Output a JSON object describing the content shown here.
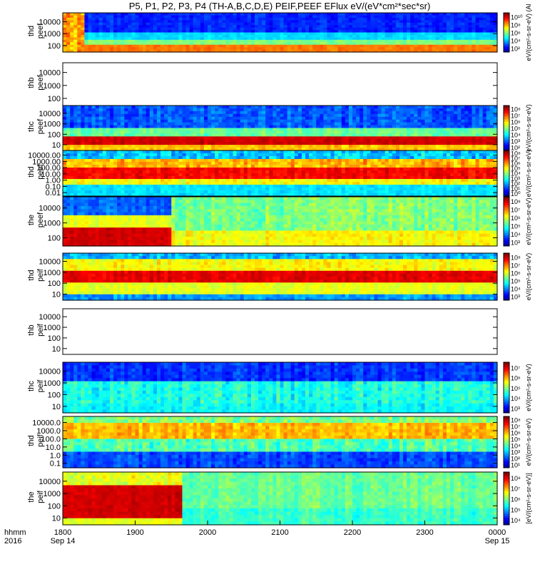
{
  "chart_data": {
    "type": "heatmap",
    "title": "P5, P1, P2, P3, P4 (TH-A,B,C,D,E) PEIF,PEEF EFlux eV/(eV*cm²*sec*sr)",
    "x_axis": {
      "label_line1": "hhmm",
      "label_line2": "2016",
      "ticks": [
        {
          "hhmm": "1800",
          "date": "Sep 14"
        },
        {
          "hhmm": "1900",
          "date": ""
        },
        {
          "hhmm": "2000",
          "date": ""
        },
        {
          "hhmm": "2100",
          "date": ""
        },
        {
          "hhmm": "2200",
          "date": ""
        },
        {
          "hhmm": "2300",
          "date": ""
        },
        {
          "hhmm": "0000",
          "date": "Sep 15"
        }
      ],
      "range": [
        "2016-09-14 18:00",
        "2016-09-15 00:00"
      ]
    },
    "panels": [
      {
        "probe": "thd",
        "product": "peef",
        "yticks": [
          "10000",
          "1000",
          "100"
        ],
        "ylog": true,
        "colorbar": {
          "ticks": [
            "10¹⁰",
            "10⁸",
            "10⁶",
            "10⁴",
            "10²"
          ],
          "label": "eV/(cm²-s-sr-eV) (Al"
        },
        "pattern": "dense-dark-blue",
        "empty": false
      },
      {
        "probe": "thb",
        "product": "peef",
        "yticks": [
          "10000",
          "1000",
          "100"
        ],
        "ylog": true,
        "colorbar": null,
        "pattern": "none",
        "empty": true
      },
      {
        "probe": "thc",
        "product": "peef",
        "yticks": [
          "10000",
          "1000",
          "100",
          "10"
        ],
        "ylog": true,
        "colorbar": {
          "ticks": [
            "10⁸",
            "10⁷",
            "10⁶",
            "10⁵",
            "10⁴",
            "10³",
            "10²"
          ],
          "label": "eV/(cm²-s-sr-eV)"
        },
        "pattern": "red-band-low",
        "empty": false
      },
      {
        "probe": "thd",
        "product": "peef",
        "yticks": [
          "10000.00",
          "1000.00",
          "100.00",
          "10.00",
          "1.00",
          "0.10",
          "0.01"
        ],
        "ylog": true,
        "colorbar": {
          "ticks": [
            "10⁸",
            "10⁷",
            "10⁶",
            "10⁵",
            "10⁴",
            "10³",
            "10²",
            "10¹",
            "10⁰"
          ],
          "label": "eV/(cm²-s-sr-eV)"
        },
        "pattern": "red-band-mid",
        "empty": false
      },
      {
        "probe": "the",
        "product": "peef",
        "yticks": [
          "10000",
          "1000",
          "100"
        ],
        "ylog": true,
        "colorbar": {
          "ticks": [
            "10⁸",
            "10⁷",
            "10⁶",
            "10⁵",
            "10⁴",
            "10³"
          ],
          "label": "eV/(cm²-s-sr-eV)"
        },
        "pattern": "red-then-green",
        "empty": false
      },
      {
        "probe": "thd",
        "product": "peif",
        "yticks": [
          "10000",
          "1000",
          "100",
          "10"
        ],
        "ylog": true,
        "colorbar": {
          "ticks": [
            "10⁸",
            "10⁷",
            "10⁶",
            "10⁵",
            "10⁴",
            "10³"
          ],
          "label": "eV/(cm²-s-sr-eV)"
        },
        "pattern": "red-band-center",
        "empty": false
      },
      {
        "probe": "thb",
        "product": "peif",
        "yticks": [
          "10000",
          "1000",
          "100",
          "10"
        ],
        "ylog": true,
        "colorbar": null,
        "pattern": "none",
        "empty": true
      },
      {
        "probe": "thc",
        "product": "peif",
        "yticks": [
          "10000",
          "1000",
          "100",
          "10"
        ],
        "ylog": true,
        "colorbar": {
          "ticks": [
            "10⁷",
            "10⁶",
            "10⁵",
            "10⁴",
            "10³"
          ],
          "label": "eV/(cm²-s-sr-eV)"
        },
        "pattern": "blue-mix",
        "empty": false
      },
      {
        "probe": "thd",
        "product": "peif",
        "yticks": [
          "10000.0",
          "1000.0",
          "100.0",
          "10.0",
          "1.0",
          "0.1"
        ],
        "ylog": true,
        "colorbar": {
          "ticks": [
            "10⁸",
            "10⁷",
            "10⁶",
            "10⁵",
            "10⁴",
            "10³",
            "10²",
            "10¹"
          ],
          "label": "eV/(cm²-s-sr-eV)"
        },
        "pattern": "yellow-upper",
        "empty": false
      },
      {
        "probe": "the",
        "product": "peif",
        "yticks": [
          "10000",
          "1000",
          "100",
          "10"
        ],
        "ylog": true,
        "colorbar": {
          "ticks": [
            "10⁸",
            "10⁷",
            "10⁶",
            "10⁵",
            "10⁴"
          ],
          "label": "[eV/(cm²-s-sr-eV)]"
        },
        "pattern": "red-left-cyan-right",
        "empty": false
      }
    ],
    "grid": false
  }
}
